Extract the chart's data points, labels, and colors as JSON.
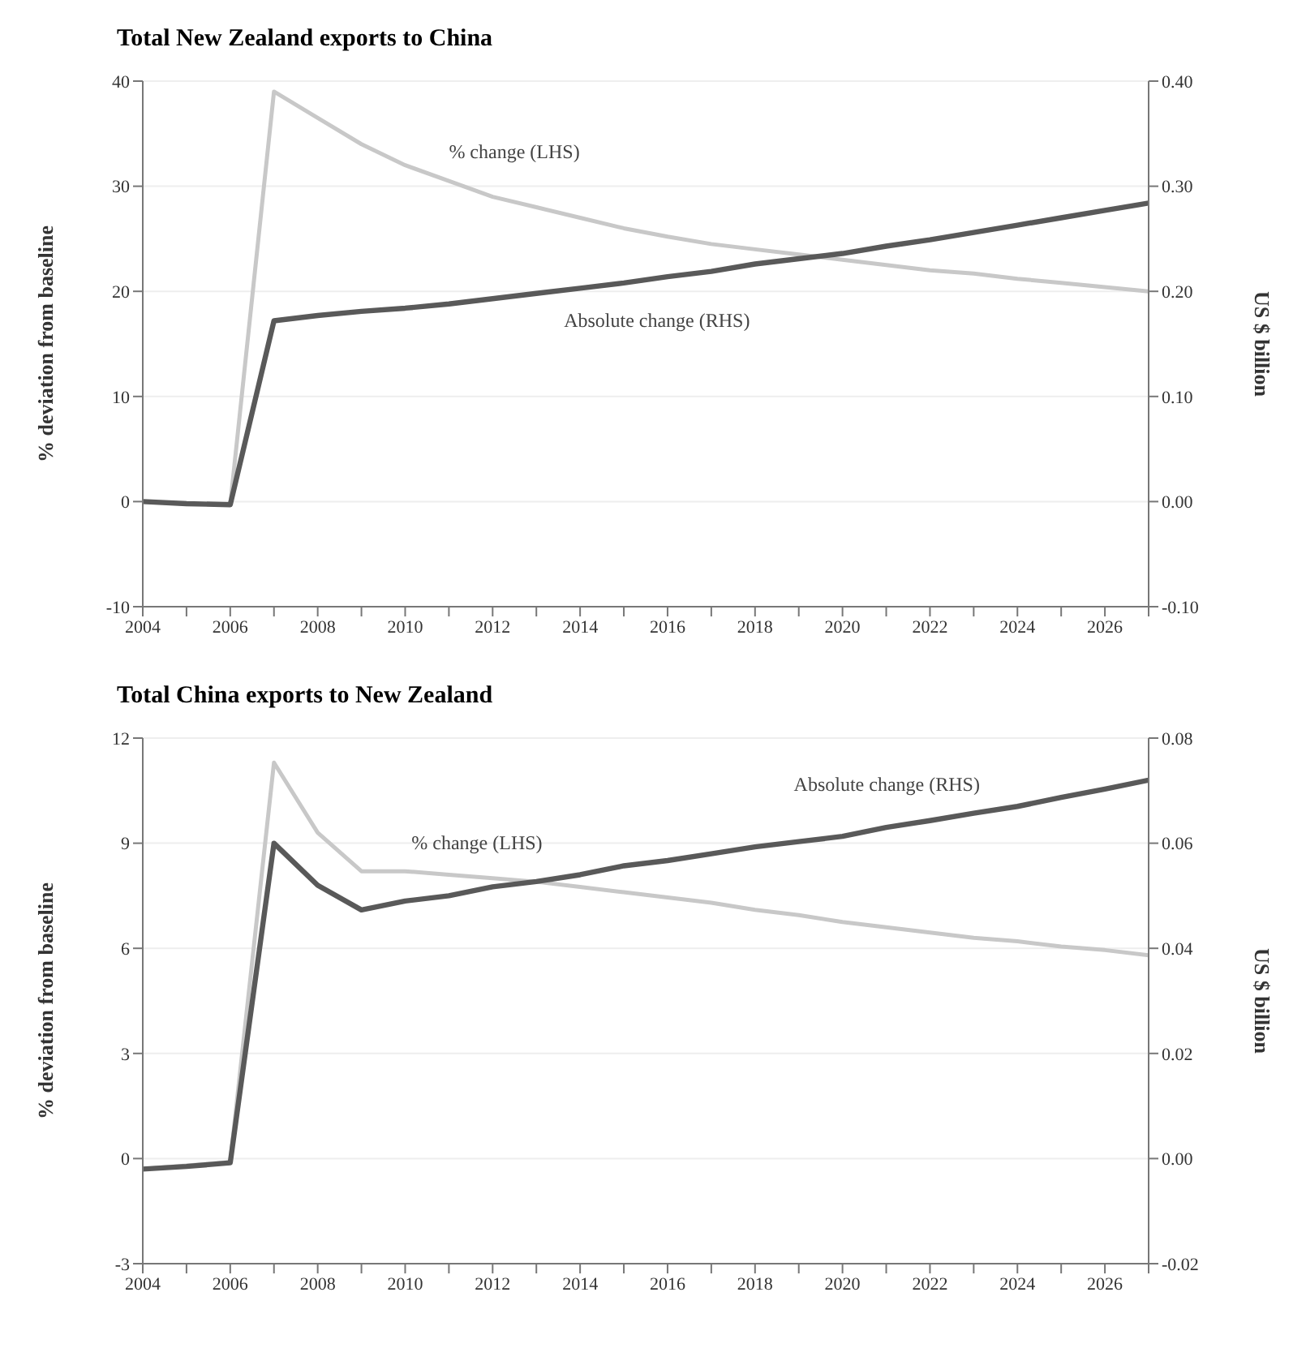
{
  "chart_data": [
    {
      "type": "line",
      "title": "Total New Zealand exports to China",
      "ylabel": "% deviation from baseline",
      "y2label": "US $ billion",
      "x": [
        2004,
        2005,
        2006,
        2007,
        2008,
        2009,
        2010,
        2011,
        2012,
        2013,
        2014,
        2015,
        2016,
        2017,
        2018,
        2019,
        2020,
        2021,
        2022,
        2023,
        2024,
        2025,
        2026,
        2027
      ],
      "series": [
        {
          "name": "% change (LHS)",
          "color": "#c8c8c8",
          "values": [
            0,
            -0.2,
            -0.3,
            39,
            36.5,
            34,
            32,
            30.5,
            29,
            28,
            27,
            26,
            25.2,
            24.5,
            24,
            23.5,
            23,
            22.5,
            22,
            21.7,
            21.2,
            20.8,
            20.4,
            20
          ]
        },
        {
          "name": "Absolute change (RHS)",
          "color": "#595959",
          "axis": "y2",
          "values": [
            0,
            -0.002,
            -0.003,
            0.172,
            0.177,
            0.181,
            0.184,
            0.188,
            0.193,
            0.198,
            0.203,
            0.208,
            0.214,
            0.219,
            0.226,
            0.231,
            0.236,
            0.243,
            0.249,
            0.256,
            0.263,
            0.27,
            0.277,
            0.284
          ]
        }
      ],
      "xlim": [
        2004,
        2027
      ],
      "xticks": [
        2004,
        {
          "value": 2005,
          "label": null
        },
        2006,
        {
          "value": 2007,
          "label": null
        },
        2008,
        {
          "value": 2009,
          "label": null
        },
        2010,
        {
          "value": 2011,
          "label": null
        },
        2012,
        {
          "value": 2013,
          "label": null
        },
        2014,
        {
          "value": 2015,
          "label": null
        },
        2016,
        {
          "value": 2017,
          "label": null
        },
        2018,
        {
          "value": 2019,
          "label": null
        },
        2020,
        {
          "value": 2021,
          "label": null
        },
        2022,
        {
          "value": 2023,
          "label": null
        },
        2024,
        {
          "value": 2025,
          "label": null
        },
        2026,
        {
          "value": 2027,
          "label": null
        }
      ],
      "ylim": [
        -10,
        40
      ],
      "yticks": [
        -10,
        0,
        10,
        20,
        30,
        40
      ],
      "y2lim": [
        -0.1,
        0.4
      ],
      "y2ticks": [
        {
          "value": -0.1,
          "label": "-0.10"
        },
        {
          "value": 0,
          "label": "0.00"
        },
        {
          "value": 0.1,
          "label": "0.10"
        },
        {
          "value": 0.2,
          "label": "0.20"
        },
        {
          "value": 0.3,
          "label": "0.30"
        },
        {
          "value": 0.4,
          "label": "0.40"
        }
      ],
      "grid": "y",
      "legend": false,
      "marker": "none",
      "line_style": "solid"
    },
    {
      "type": "line",
      "title": "Total China exports to New Zealand",
      "ylabel": "% deviation from baseline",
      "y2label": "US $ billion",
      "x": [
        2004,
        2005,
        2006,
        2007,
        2008,
        2009,
        2010,
        2011,
        2012,
        2013,
        2014,
        2015,
        2016,
        2017,
        2018,
        2019,
        2020,
        2021,
        2022,
        2023,
        2024,
        2025,
        2026,
        2027
      ],
      "series": [
        {
          "name": "% change (LHS)",
          "color": "#c8c8c8",
          "values": [
            -0.3,
            -0.2,
            -0.1,
            11.3,
            9.3,
            8.2,
            8.2,
            8.1,
            8,
            7.9,
            7.75,
            7.6,
            7.45,
            7.3,
            7.1,
            6.95,
            6.75,
            6.6,
            6.45,
            6.3,
            6.2,
            6.05,
            5.95,
            5.8
          ]
        },
        {
          "name": "Absolute change (RHS)",
          "color": "#595959",
          "axis": "y2",
          "values": [
            -0.002,
            -0.0015,
            -0.0008,
            0.06,
            0.052,
            0.0473,
            0.049,
            0.05,
            0.0517,
            0.0527,
            0.054,
            0.0557,
            0.0567,
            0.058,
            0.0593,
            0.0603,
            0.0613,
            0.063,
            0.0643,
            0.0657,
            0.067,
            0.0687,
            0.0703,
            0.072
          ]
        }
      ],
      "xlim": [
        2004,
        2027
      ],
      "xticks": [
        2004,
        {
          "value": 2005,
          "label": null
        },
        2006,
        {
          "value": 2007,
          "label": null
        },
        2008,
        {
          "value": 2009,
          "label": null
        },
        2010,
        {
          "value": 2011,
          "label": null
        },
        2012,
        {
          "value": 2013,
          "label": null
        },
        2014,
        {
          "value": 2015,
          "label": null
        },
        2016,
        {
          "value": 2017,
          "label": null
        },
        2018,
        {
          "value": 2019,
          "label": null
        },
        2020,
        {
          "value": 2021,
          "label": null
        },
        2022,
        {
          "value": 2023,
          "label": null
        },
        2024,
        {
          "value": 2025,
          "label": null
        },
        2026,
        {
          "value": 2027,
          "label": null
        }
      ],
      "ylim": [
        -3,
        12
      ],
      "yticks": [
        -3,
        0,
        3,
        6,
        9,
        12
      ],
      "y2lim": [
        -0.02,
        0.08
      ],
      "y2ticks": [
        {
          "value": -0.02,
          "label": "-0.02"
        },
        {
          "value": 0,
          "label": "0.00"
        },
        {
          "value": 0.02,
          "label": "0.02"
        },
        {
          "value": 0.04,
          "label": "0.04"
        },
        {
          "value": 0.06,
          "label": "0.06"
        },
        {
          "value": 0.08,
          "label": "0.08"
        }
      ],
      "grid": "y",
      "legend": false,
      "marker": "none",
      "line_style": "solid"
    }
  ]
}
